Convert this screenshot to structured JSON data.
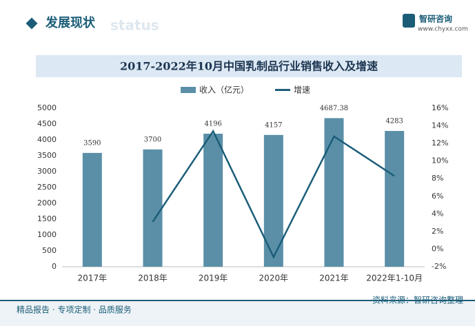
{
  "header": {
    "title": "发展现状",
    "watermark": "status",
    "logo": "智研咨询",
    "url": "www.chyxx.com"
  },
  "footer": {
    "slogan": "精品报告 · 专项定制 · 品质服务",
    "source": "资料来源：智研咨询整理"
  },
  "chart_data": {
    "type": "bar",
    "title": "2017-2022年10月中国乳制品行业销售收入及增速",
    "categories": [
      "2017年",
      "2018年",
      "2019年",
      "2020年",
      "2021年",
      "2022年1-10月"
    ],
    "series": [
      {
        "name": "收入（亿元）",
        "type": "bar",
        "color": "#5b8fa8",
        "values": [
          3590,
          3700,
          4196,
          4157,
          4687.38,
          4283
        ]
      },
      {
        "name": "增速",
        "type": "line",
        "axis": "y2",
        "color": "#1b5d78",
        "values": [
          null,
          3.1,
          13.4,
          -0.9,
          12.8,
          8.3
        ]
      }
    ],
    "ylim": [
      0,
      5000
    ],
    "yticks": [
      0,
      500,
      1000,
      1500,
      2000,
      2500,
      3000,
      3500,
      4000,
      4500,
      5000
    ],
    "y2lim": [
      -2,
      16
    ],
    "y2ticks": [
      {
        "value": -2,
        "label": "-2%"
      },
      {
        "value": 0,
        "label": "0%"
      },
      {
        "value": 2,
        "label": "2%"
      },
      {
        "value": 4,
        "label": "4%"
      },
      {
        "value": 6,
        "label": "6%"
      },
      {
        "value": 8,
        "label": "8%"
      },
      {
        "value": 10,
        "label": "10%"
      },
      {
        "value": 12,
        "label": "12%"
      },
      {
        "value": 14,
        "label": "14%"
      },
      {
        "value": 16,
        "label": "16%"
      }
    ],
    "grid": false,
    "legend": "top"
  }
}
